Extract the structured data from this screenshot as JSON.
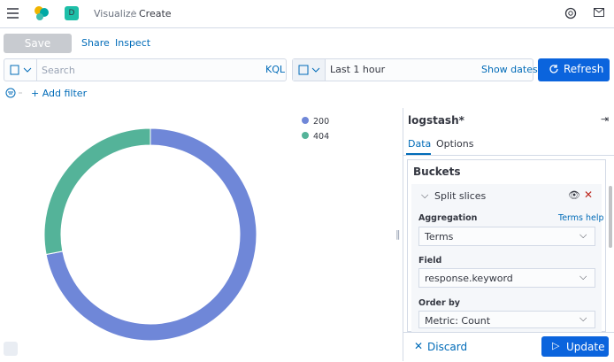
{
  "header": {
    "avatar": "D",
    "breadcrumbs": [
      "Visualize",
      "Create"
    ]
  },
  "toolbar": {
    "save": "Save",
    "share": "Share",
    "inspect": "Inspect"
  },
  "query": {
    "search_placeholder": "Search",
    "language": "KQL",
    "time": "Last 1 hour",
    "show_dates": "Show dates",
    "refresh": "Refresh"
  },
  "filter": {
    "add_filter": "+ Add filter"
  },
  "chart_data": {
    "type": "pie",
    "donut": true,
    "categories": [
      "200",
      "404"
    ],
    "values": [
      72,
      28
    ],
    "colors": [
      "#6f87d8",
      "#54b399"
    ],
    "legend": "top-right"
  },
  "sidebar": {
    "index": "logstash*",
    "tabs": [
      "Data",
      "Options"
    ],
    "section": "Buckets",
    "bucket": "Split slices",
    "fields": [
      {
        "label": "Aggregation",
        "help": "Terms help",
        "value": "Terms"
      },
      {
        "label": "Field",
        "value": "response.keyword"
      },
      {
        "label": "Order by",
        "value": "Metric: Count"
      }
    ],
    "discard": "Discard",
    "update": "Update"
  }
}
